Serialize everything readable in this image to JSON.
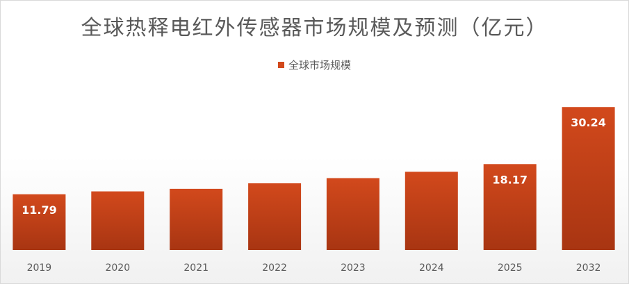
{
  "chart_data": {
    "type": "bar",
    "title": "全球热释电红外传感器市场规模及预测（亿元）",
    "categories": [
      "2019",
      "2020",
      "2021",
      "2022",
      "2023",
      "2024",
      "2025",
      "2032"
    ],
    "series": [
      {
        "name": "全球市场规模",
        "values": [
          11.79,
          12.4,
          12.95,
          14.1,
          15.2,
          16.55,
          18.17,
          30.24
        ]
      }
    ],
    "data_labels": [
      "11.79",
      "",
      "",
      "",
      "",
      "",
      "18.17",
      "30.24"
    ],
    "ylim": [
      0,
      31
    ],
    "xlabel": "",
    "ylabel": "",
    "grid": false,
    "legend_position": "top-center",
    "bar_color": "#d2491c",
    "bar_color_dark": "#a83512",
    "label_color": "#ffffff"
  }
}
